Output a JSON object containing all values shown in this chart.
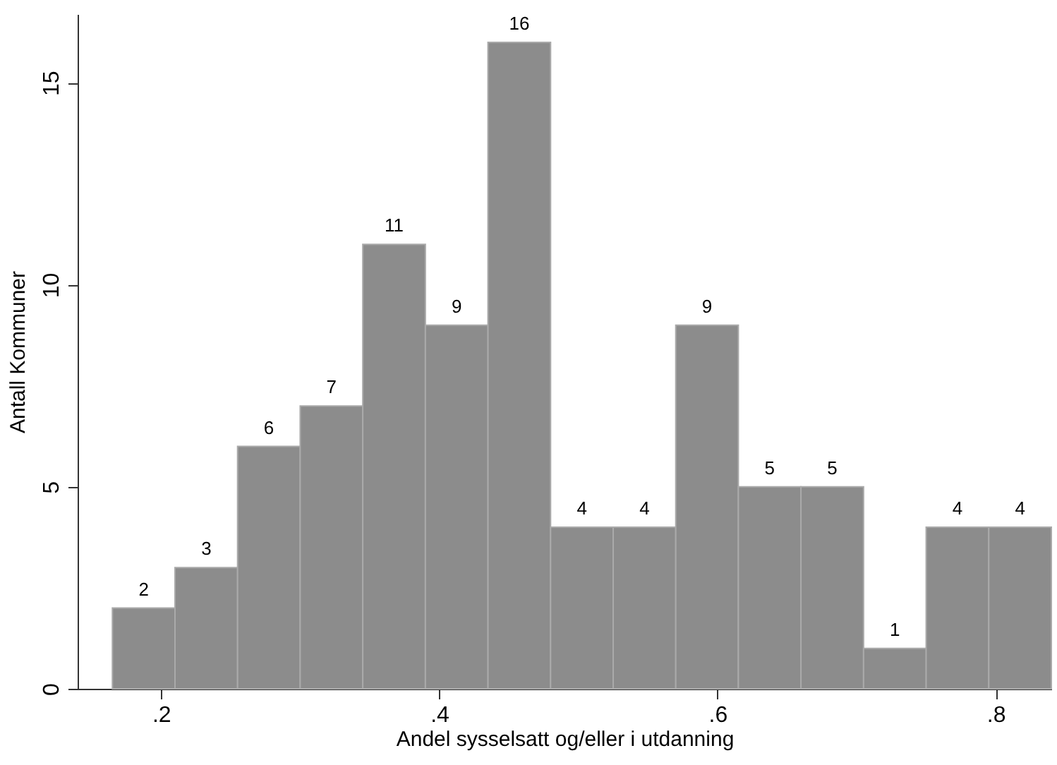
{
  "chart_data": {
    "type": "histogram",
    "xlabel": "Andel sysselsatt og/eller i utdanning",
    "ylabel": "Antall Kommuner",
    "bins": [
      0.165,
      0.21,
      0.255,
      0.3,
      0.345,
      0.39,
      0.435,
      0.48,
      0.525,
      0.57,
      0.615,
      0.66,
      0.705,
      0.75,
      0.795,
      0.84
    ],
    "values": [
      2,
      3,
      6,
      7,
      11,
      9,
      16,
      4,
      4,
      9,
      5,
      5,
      1,
      4,
      4
    ],
    "color": "#8c8c8c",
    "xlim": [
      0.14,
      0.84
    ],
    "xticks": [
      {
        "value": 0.2,
        "label": ".2"
      },
      {
        "value": 0.4,
        "label": ".4"
      },
      {
        "value": 0.6,
        "label": ".6"
      },
      {
        "value": 0.8,
        "label": ".8"
      }
    ],
    "ylim": [
      0,
      16.7
    ],
    "yticks": [
      0,
      5,
      10,
      15
    ],
    "data_labels": true,
    "grid": false
  }
}
